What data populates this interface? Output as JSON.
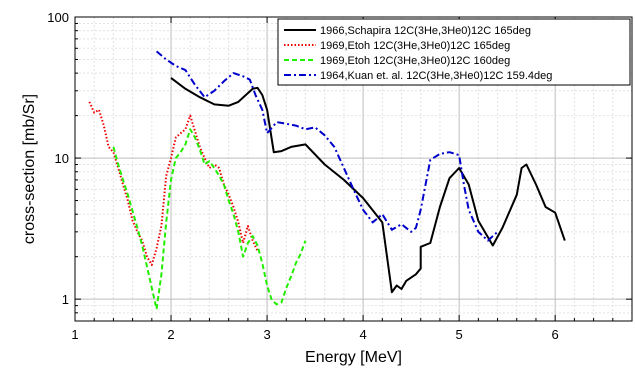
{
  "chart_data": {
    "type": "line",
    "xlabel": "Energy [MeV]",
    "ylabel": "cross-section [mb/Sr]",
    "xlim": [
      1,
      6.8
    ],
    "ylim": [
      0.7,
      100
    ],
    "yscale": "log",
    "grid": true,
    "legend_position": "top-right",
    "xticks": [
      1,
      2,
      3,
      4,
      5,
      6
    ],
    "yticks": [
      1,
      10,
      100
    ],
    "series": [
      {
        "name": "1966,Schapira 12C(3He,3He0)12C 165deg",
        "color": "#000000",
        "dash": "solid",
        "x": [
          2.0,
          2.15,
          2.3,
          2.45,
          2.6,
          2.7,
          2.85,
          2.9,
          2.95,
          3.0,
          3.07,
          3.15,
          3.25,
          3.4,
          3.6,
          3.8,
          4.0,
          4.2,
          4.3,
          4.35,
          4.4,
          4.45,
          4.55,
          4.6,
          4.6,
          4.7,
          4.8,
          4.9,
          5.0,
          5.1,
          5.2,
          5.35,
          5.45,
          5.6,
          5.65,
          5.7,
          5.8,
          5.9,
          6.0,
          6.1
        ],
        "y": [
          37,
          31,
          27,
          24,
          23.5,
          25,
          31,
          31.5,
          28,
          22,
          11,
          11.2,
          12,
          12.5,
          9,
          7,
          5.2,
          3.5,
          1.12,
          1.25,
          1.18,
          1.35,
          1.5,
          1.65,
          2.35,
          2.5,
          4.5,
          7.2,
          8.5,
          6.5,
          3.6,
          2.4,
          3.2,
          5.5,
          8.5,
          9,
          6.5,
          4.5,
          4.1,
          2.6
        ]
      },
      {
        "name": "1969,Etoh 12C(3He,3He0)12C 165deg",
        "color": "#ee0000",
        "dash": "dotted",
        "x": [
          1.15,
          1.2,
          1.25,
          1.3,
          1.35,
          1.4,
          1.45,
          1.5,
          1.55,
          1.6,
          1.65,
          1.7,
          1.75,
          1.8,
          1.85,
          1.9,
          1.95,
          2.0,
          2.05,
          2.1,
          2.15,
          2.2,
          2.25,
          2.3,
          2.35,
          2.4,
          2.45,
          2.5,
          2.55,
          2.6,
          2.65,
          2.7,
          2.75,
          2.8,
          2.85,
          2.9
        ],
        "y": [
          25,
          21,
          22,
          17,
          12,
          11,
          8.5,
          6.5,
          5,
          3.6,
          3,
          2.6,
          2,
          1.75,
          2.3,
          3.3,
          7.5,
          10,
          14,
          15,
          16,
          20,
          15.5,
          12,
          10,
          8.5,
          9,
          8.5,
          6.5,
          5.5,
          4.5,
          3.5,
          2.5,
          3.3,
          2.6,
          2.2
        ]
      },
      {
        "name": "1969,Etoh 12C(3He,3He0)12C 160deg",
        "color": "#22ee00",
        "dash": "dashed",
        "x": [
          1.4,
          1.45,
          1.5,
          1.55,
          1.6,
          1.65,
          1.7,
          1.75,
          1.8,
          1.85,
          1.9,
          1.95,
          2.0,
          2.05,
          2.1,
          2.15,
          2.2,
          2.25,
          2.3,
          2.35,
          2.4,
          2.45,
          2.5,
          2.55,
          2.6,
          2.65,
          2.7,
          2.75,
          2.8,
          2.85,
          2.9,
          2.95,
          3.0,
          3.05,
          3.1,
          3.15,
          3.2,
          3.25,
          3.3,
          3.35,
          3.4
        ],
        "y": [
          12,
          9,
          7,
          5.5,
          4.2,
          3.2,
          2.4,
          1.7,
          1.2,
          0.85,
          1.5,
          3.5,
          7,
          10,
          11,
          12.5,
          16,
          14,
          11.5,
          9,
          9.5,
          8.5,
          7.5,
          6.5,
          5,
          4,
          3,
          2,
          2.5,
          2.8,
          2.4,
          1.8,
          1.25,
          0.98,
          0.92,
          0.95,
          1.2,
          1.45,
          1.8,
          2.1,
          2.6
        ]
      },
      {
        "name": "1964,Kuan et. al. 12C(3He,3He0)12C 159.4deg",
        "color": "#0000cc",
        "dash": "dashdot",
        "x": [
          1.85,
          1.95,
          2.05,
          2.15,
          2.25,
          2.35,
          2.45,
          2.55,
          2.65,
          2.75,
          2.82,
          2.88,
          2.95,
          3.0,
          3.1,
          3.2,
          3.3,
          3.4,
          3.5,
          3.6,
          3.7,
          3.8,
          3.9,
          4.0,
          4.1,
          4.2,
          4.3,
          4.4,
          4.5,
          4.55,
          4.6,
          4.7,
          4.8,
          4.9,
          5.0,
          5.05,
          5.1,
          5.2,
          5.3,
          5.4
        ],
        "y": [
          57,
          50,
          45,
          42,
          33,
          27,
          30,
          35,
          40,
          38,
          36,
          28,
          22,
          15,
          18,
          17.5,
          17,
          16,
          16.5,
          14.5,
          12,
          8.5,
          6,
          4.3,
          3.5,
          4,
          3.1,
          3.4,
          3,
          3.2,
          4.3,
          9.7,
          10.7,
          11,
          10.5,
          6.5,
          4.3,
          3,
          2.6,
          3
        ]
      }
    ]
  }
}
